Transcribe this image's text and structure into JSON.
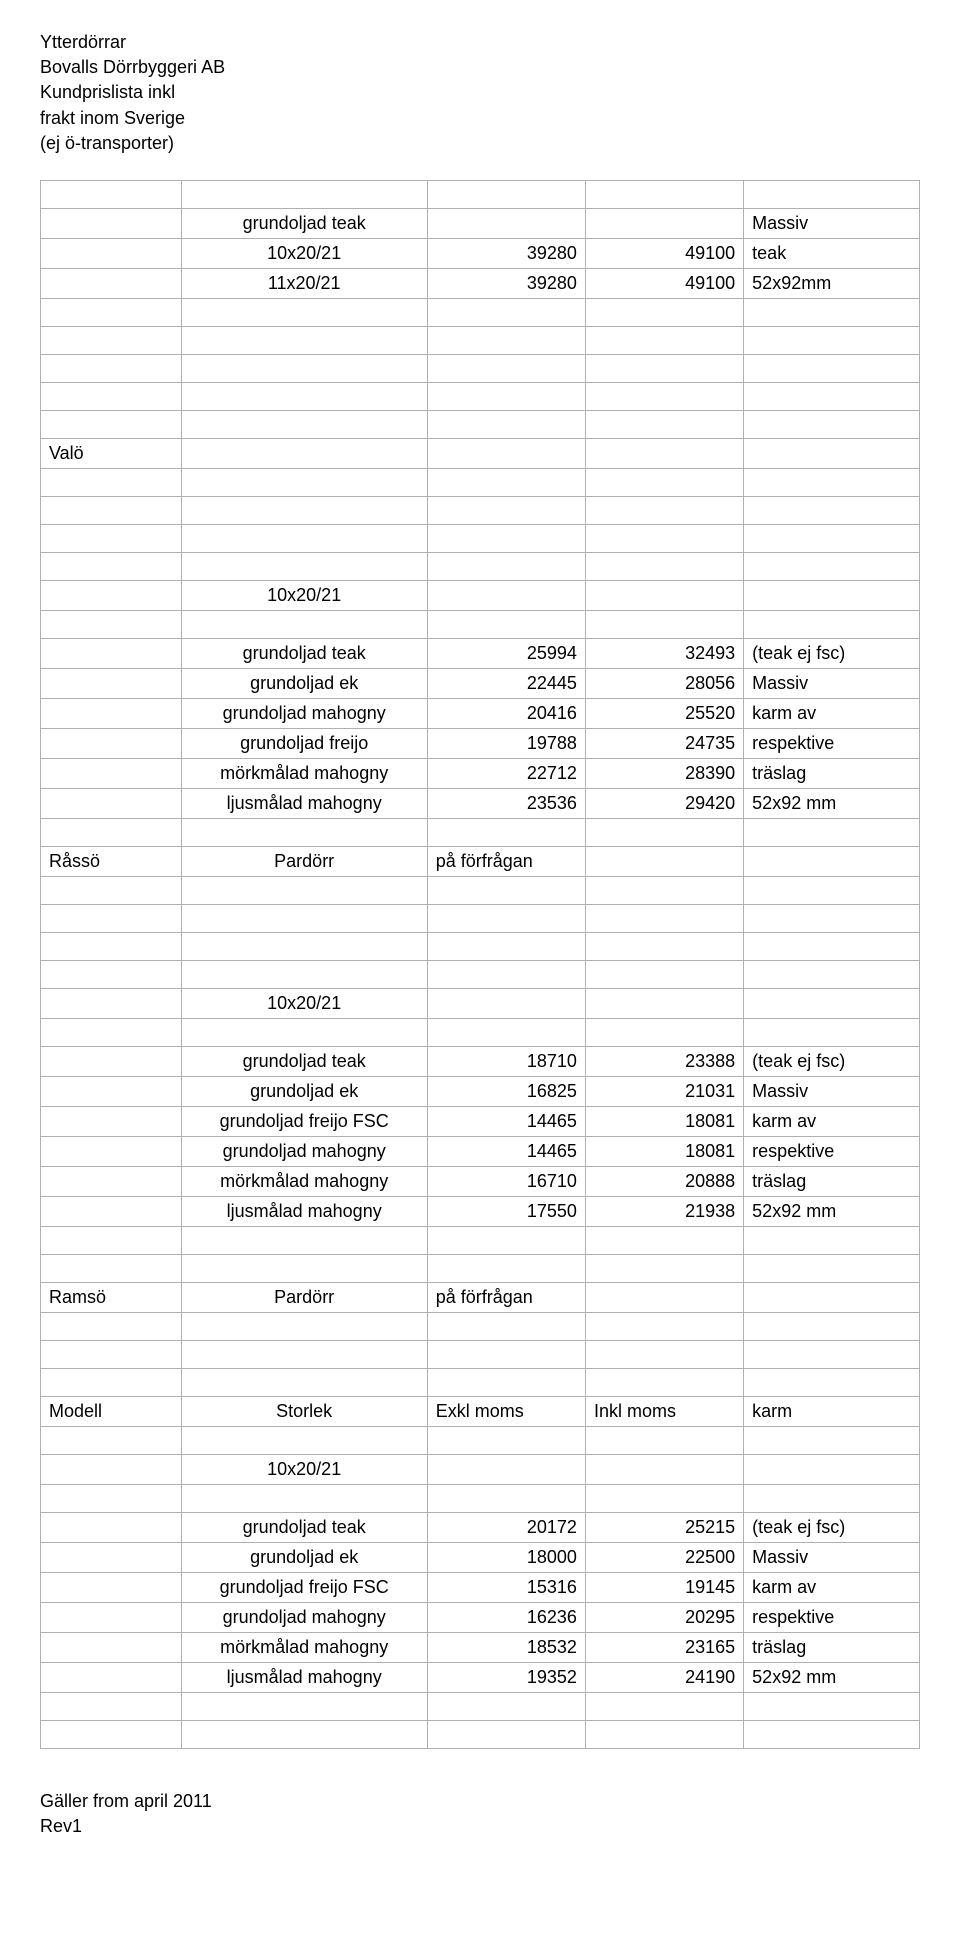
{
  "header": {
    "line1": "Ytterdörrar",
    "line2": "Bovalls Dörrbyggeri AB",
    "line3": "Kundprislista inkl",
    "line4": "frakt inom Sverige",
    "line5": "(ej ö-transporter)"
  },
  "footer": {
    "line1": "Gäller from april 2011",
    "line2": "Rev1"
  },
  "styling": {
    "border_color": "#b0b0b0",
    "background_color": "#ffffff",
    "text_color": "#000000",
    "font_family": "Lucida Sans",
    "body_fontsize_pt": 14
  },
  "rows": [
    {
      "c0": "",
      "c1": "",
      "c2": "",
      "c3": "",
      "c4": ""
    },
    {
      "c0": "",
      "c1": "grundoljad teak",
      "c2": "",
      "c3": "",
      "c4": "Massiv"
    },
    {
      "c0": "",
      "c1": "10x20/21",
      "c2": "39280",
      "c3": "49100",
      "c4": "teak"
    },
    {
      "c0": "",
      "c1": "11x20/21",
      "c2": "39280",
      "c3": "49100",
      "c4": "52x92mm"
    },
    {
      "c0": "",
      "c1": "",
      "c2": "",
      "c3": "",
      "c4": ""
    },
    {
      "c0": "",
      "c1": "",
      "c2": "",
      "c3": "",
      "c4": ""
    },
    {
      "c0": "",
      "c1": "",
      "c2": "",
      "c3": "",
      "c4": ""
    },
    {
      "c0": "",
      "c1": "",
      "c2": "",
      "c3": "",
      "c4": ""
    },
    {
      "c0": "",
      "c1": "",
      "c2": "",
      "c3": "",
      "c4": ""
    },
    {
      "c0": "Valö",
      "c1": "",
      "c2": "",
      "c3": "",
      "c4": ""
    },
    {
      "c0": "",
      "c1": "",
      "c2": "",
      "c3": "",
      "c4": ""
    },
    {
      "c0": "",
      "c1": "",
      "c2": "",
      "c3": "",
      "c4": ""
    },
    {
      "c0": "",
      "c1": "",
      "c2": "",
      "c3": "",
      "c4": ""
    },
    {
      "c0": "",
      "c1": "",
      "c2": "",
      "c3": "",
      "c4": ""
    },
    {
      "c0": "",
      "c1": "10x20/21",
      "c2": "",
      "c3": "",
      "c4": ""
    },
    {
      "c0": "",
      "c1": "",
      "c2": "",
      "c3": "",
      "c4": ""
    },
    {
      "c0": "",
      "c1": "grundoljad teak",
      "c2": "25994",
      "c3": "32493",
      "c4": "(teak ej fsc)"
    },
    {
      "c0": "",
      "c1": "grundoljad ek",
      "c2": "22445",
      "c3": "28056",
      "c4": "Massiv"
    },
    {
      "c0": "",
      "c1": "grundoljad mahogny",
      "c2": "20416",
      "c3": "25520",
      "c4": "karm av"
    },
    {
      "c0": "",
      "c1": "grundoljad freijo",
      "c2": "19788",
      "c3": "24735",
      "c4": "respektive"
    },
    {
      "c0": "",
      "c1": "mörkmålad mahogny",
      "c2": "22712",
      "c3": "28390",
      "c4": "träslag"
    },
    {
      "c0": "",
      "c1": "ljusmålad mahogny",
      "c2": "23536",
      "c3": "29420",
      "c4": "52x92 mm"
    },
    {
      "c0": "",
      "c1": "",
      "c2": "",
      "c3": "",
      "c4": ""
    },
    {
      "c0": "Råssö",
      "c1": "Pardörr",
      "c2": "på förfrågan",
      "c2left": true,
      "c3": "",
      "c4": ""
    },
    {
      "c0": "",
      "c1": "",
      "c2": "",
      "c3": "",
      "c4": ""
    },
    {
      "c0": "",
      "c1": "",
      "c2": "",
      "c3": "",
      "c4": ""
    },
    {
      "c0": "",
      "c1": "",
      "c2": "",
      "c3": "",
      "c4": ""
    },
    {
      "c0": "",
      "c1": "",
      "c2": "",
      "c3": "",
      "c4": ""
    },
    {
      "c0": "",
      "c1": "10x20/21",
      "c2": "",
      "c3": "",
      "c4": ""
    },
    {
      "c0": "",
      "c1": "",
      "c2": "",
      "c3": "",
      "c4": ""
    },
    {
      "c0": "",
      "c1": "grundoljad teak",
      "c2": "18710",
      "c3": "23388",
      "c4": "(teak ej fsc)"
    },
    {
      "c0": "",
      "c1": "grundoljad ek",
      "c2": "16825",
      "c3": "21031",
      "c4": "Massiv"
    },
    {
      "c0": "",
      "c1": "grundoljad freijo FSC",
      "c2": "14465",
      "c3": "18081",
      "c4": "karm av"
    },
    {
      "c0": "",
      "c1": "grundoljad mahogny",
      "c2": "14465",
      "c3": "18081",
      "c4": "respektive"
    },
    {
      "c0": "",
      "c1": "mörkmålad mahogny",
      "c2": "16710",
      "c3": "20888",
      "c4": "träslag"
    },
    {
      "c0": "",
      "c1": "ljusmålad mahogny",
      "c2": "17550",
      "c3": "21938",
      "c4": "52x92 mm"
    },
    {
      "c0": "",
      "c1": "",
      "c2": "",
      "c3": "",
      "c4": ""
    },
    {
      "c0": "",
      "c1": "",
      "c2": "",
      "c3": "",
      "c4": ""
    },
    {
      "c0": "Ramsö",
      "c1": "Pardörr",
      "c2": "på förfrågan",
      "c2left": true,
      "c3": "",
      "c4": ""
    },
    {
      "c0": "",
      "c1": "",
      "c2": "",
      "c3": "",
      "c4": ""
    },
    {
      "c0": "",
      "c1": "",
      "c2": "",
      "c3": "",
      "c4": ""
    },
    {
      "c0": "",
      "c1": "",
      "c2": "",
      "c3": "",
      "c4": ""
    },
    {
      "c0": "Modell",
      "c1": "Storlek",
      "c2": "Exkl moms",
      "c2left": true,
      "c3": "Inkl moms",
      "c3left": true,
      "c4": "karm"
    },
    {
      "c0": "",
      "c1": "",
      "c2": "",
      "c3": "",
      "c4": ""
    },
    {
      "c0": "",
      "c1": "10x20/21",
      "c2": "",
      "c3": "",
      "c4": ""
    },
    {
      "c0": "",
      "c1": "",
      "c2": "",
      "c3": "",
      "c4": ""
    },
    {
      "c0": "",
      "c1": "grundoljad teak",
      "c2": "20172",
      "c3": "25215",
      "c4": "(teak ej fsc)"
    },
    {
      "c0": "",
      "c1": "grundoljad ek",
      "c2": "18000",
      "c3": "22500",
      "c4": "Massiv"
    },
    {
      "c0": "",
      "c1": "grundoljad freijo FSC",
      "c2": "15316",
      "c3": "19145",
      "c4": "karm av"
    },
    {
      "c0": "",
      "c1": "grundoljad mahogny",
      "c2": "16236",
      "c3": "20295",
      "c4": "respektive"
    },
    {
      "c0": "",
      "c1": "mörkmålad mahogny",
      "c2": "18532",
      "c3": "23165",
      "c4": "träslag"
    },
    {
      "c0": "",
      "c1": "ljusmålad mahogny",
      "c2": "19352",
      "c3": "24190",
      "c4": "52x92 mm"
    },
    {
      "c0": "",
      "c1": "",
      "c2": "",
      "c3": "",
      "c4": ""
    },
    {
      "c0": "",
      "c1": "",
      "c2": "",
      "c3": "",
      "c4": ""
    }
  ]
}
